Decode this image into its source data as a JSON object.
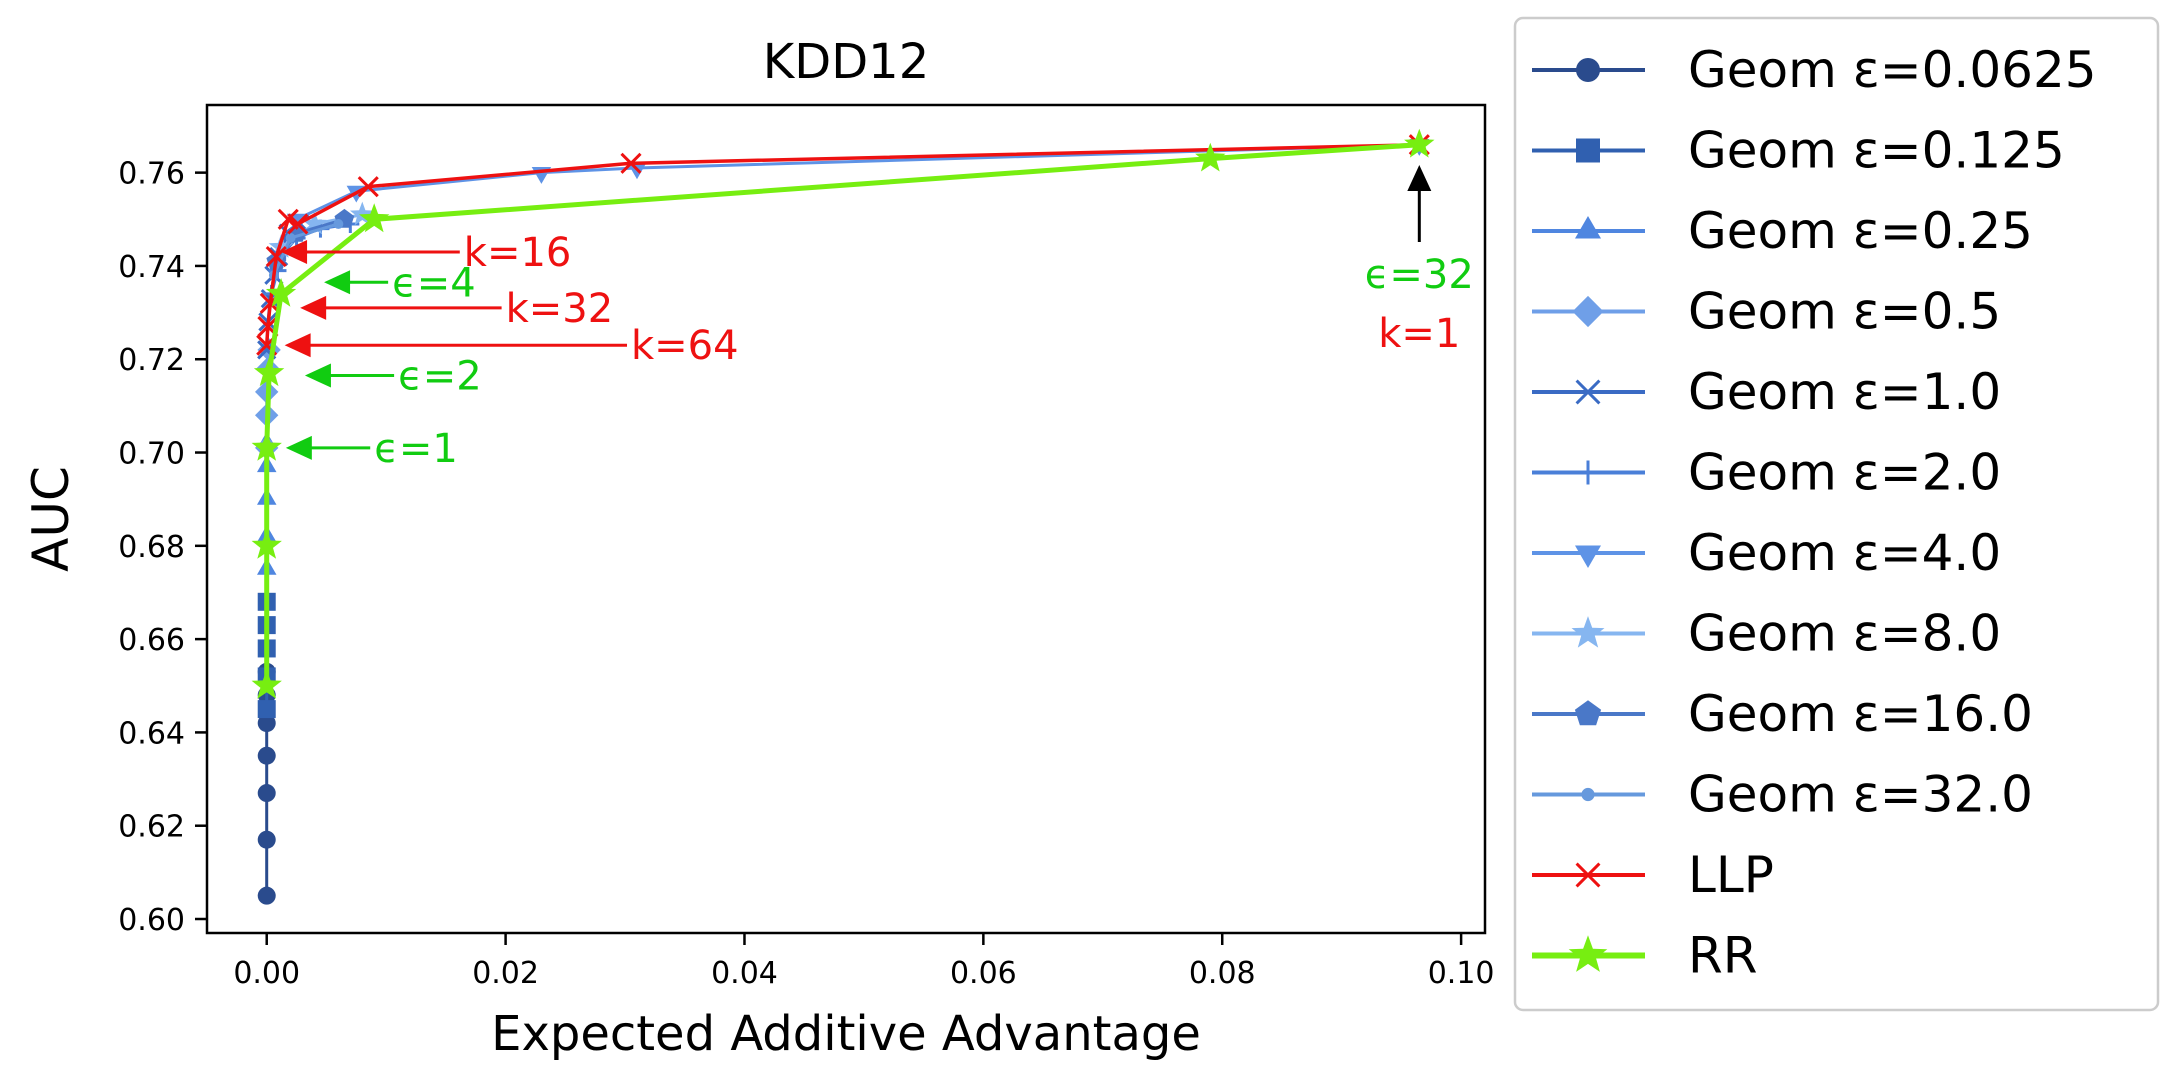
{
  "chart_data": {
    "type": "line",
    "title": "KDD12",
    "xlabel": "Expected Additive Advantage",
    "ylabel": "AUC",
    "xlim": [
      -0.005,
      0.102
    ],
    "ylim": [
      0.597,
      0.7745
    ],
    "xticks": [
      0.0,
      0.02,
      0.04,
      0.06,
      0.08,
      0.1
    ],
    "xtick_labels": [
      "0.00",
      "0.02",
      "0.04",
      "0.06",
      "0.08",
      "0.10"
    ],
    "yticks": [
      0.6,
      0.62,
      0.64,
      0.66,
      0.68,
      0.7,
      0.72,
      0.74,
      0.76
    ],
    "ytick_labels": [
      "0.60",
      "0.62",
      "0.64",
      "0.66",
      "0.68",
      "0.70",
      "0.72",
      "0.74",
      "0.76"
    ],
    "legend_position": "outside-right",
    "grid": false,
    "series": [
      {
        "name": "Geom ε=0.0625",
        "color": "#2a4b8d",
        "marker": "circle",
        "points": [
          [
            0.0,
            0.605
          ],
          [
            0.0,
            0.617
          ],
          [
            0.0,
            0.627
          ],
          [
            0.0,
            0.635
          ],
          [
            0.0,
            0.642
          ],
          [
            0.0,
            0.648
          ],
          [
            0.0,
            0.653
          ]
        ]
      },
      {
        "name": "Geom ε=0.125",
        "color": "#3060b0",
        "marker": "square",
        "points": [
          [
            0.0,
            0.645
          ],
          [
            0.0,
            0.652
          ],
          [
            0.0,
            0.658
          ],
          [
            0.0,
            0.663
          ],
          [
            0.0,
            0.668
          ]
        ]
      },
      {
        "name": "Geom ε=0.25",
        "color": "#4f86e0",
        "marker": "triangle-up",
        "points": [
          [
            0.0,
            0.675
          ],
          [
            0.0,
            0.682
          ],
          [
            0.0,
            0.69
          ],
          [
            0.0,
            0.697
          ],
          [
            0.0,
            0.702
          ]
        ]
      },
      {
        "name": "Geom ε=0.5",
        "color": "#6f9fe8",
        "marker": "diamond",
        "points": [
          [
            0.0,
            0.701
          ],
          [
            0.0,
            0.708
          ],
          [
            0.0,
            0.713
          ],
          [
            0.0001,
            0.718
          ],
          [
            0.0002,
            0.722
          ]
        ]
      },
      {
        "name": "Geom ε=1.0",
        "color": "#3a6bc4",
        "marker": "x",
        "points": [
          [
            0.0,
            0.722
          ],
          [
            0.0001,
            0.728
          ],
          [
            0.0003,
            0.733
          ],
          [
            0.0006,
            0.738
          ],
          [
            0.001,
            0.742
          ],
          [
            0.0018,
            0.747
          ],
          [
            0.0028,
            0.749
          ]
        ]
      },
      {
        "name": "Geom ε=2.0",
        "color": "#4a7fd8",
        "marker": "plus",
        "points": [
          [
            0.0004,
            0.734
          ],
          [
            0.0009,
            0.739
          ],
          [
            0.0015,
            0.743
          ],
          [
            0.0025,
            0.746
          ],
          [
            0.0045,
            0.748
          ],
          [
            0.007,
            0.749
          ]
        ]
      },
      {
        "name": "Geom ε=4.0",
        "color": "#5e93e6",
        "marker": "triangle-down",
        "points": [
          [
            0.0025,
            0.75
          ],
          [
            0.0075,
            0.756
          ],
          [
            0.023,
            0.76
          ],
          [
            0.031,
            0.761
          ],
          [
            0.0965,
            0.766
          ]
        ]
      },
      {
        "name": "Geom ε=8.0",
        "color": "#86b6f0",
        "marker": "star",
        "points": [
          [
            0.0012,
            0.744
          ],
          [
            0.004,
            0.749
          ],
          [
            0.008,
            0.751
          ]
        ]
      },
      {
        "name": "Geom ε=16.0",
        "color": "#4a78c8",
        "marker": "pentagon",
        "points": [
          [
            0.0008,
            0.741
          ],
          [
            0.0025,
            0.747
          ],
          [
            0.0065,
            0.75
          ]
        ]
      },
      {
        "name": "Geom ε=32.0",
        "color": "#6699dd",
        "marker": "point",
        "points": [
          [
            0.0006,
            0.738
          ],
          [
            0.002,
            0.746
          ],
          [
            0.006,
            0.749
          ]
        ]
      },
      {
        "name": "LLP",
        "color": "#ee1111",
        "marker": "x",
        "points": [
          [
            0.0,
            0.723
          ],
          [
            0.0001,
            0.727
          ],
          [
            0.0003,
            0.732
          ],
          [
            0.0008,
            0.742
          ],
          [
            0.0018,
            0.75
          ],
          [
            0.0026,
            0.749
          ],
          [
            0.0085,
            0.757
          ],
          [
            0.0305,
            0.762
          ],
          [
            0.0965,
            0.766
          ]
        ]
      },
      {
        "name": "RR",
        "color": "#77ee11",
        "marker": "star",
        "points": [
          [
            0.0,
            0.65
          ],
          [
            0.0,
            0.68
          ],
          [
            0.0,
            0.701
          ],
          [
            0.0002,
            0.717
          ],
          [
            0.0012,
            0.734
          ],
          [
            0.009,
            0.75
          ],
          [
            0.079,
            0.763
          ],
          [
            0.0965,
            0.766
          ]
        ]
      }
    ],
    "annotations": [
      {
        "text": "k=16",
        "color": "#ee1111",
        "arrow_to": [
          0.0012,
          0.743
        ],
        "text_at": [
          0.0165,
          0.743
        ]
      },
      {
        "text": "ϵ=4",
        "color": "#11cc11",
        "arrow_to": [
          0.0048,
          0.7365
        ],
        "text_at": [
          0.0105,
          0.7365
        ]
      },
      {
        "text": "k=32",
        "color": "#ee1111",
        "arrow_to": [
          0.0028,
          0.731
        ],
        "text_at": [
          0.02,
          0.731
        ]
      },
      {
        "text": "k=64",
        "color": "#ee1111",
        "arrow_to": [
          0.0015,
          0.723
        ],
        "text_at": [
          0.0305,
          0.723
        ]
      },
      {
        "text": "ϵ=2",
        "color": "#11cc11",
        "arrow_to": [
          0.0032,
          0.7165
        ],
        "text_at": [
          0.011,
          0.7165
        ]
      },
      {
        "text": "ϵ=1",
        "color": "#11cc11",
        "arrow_to": [
          0.0016,
          0.701
        ],
        "text_at": [
          0.009,
          0.701
        ]
      }
    ],
    "top_annotation": {
      "line1": "ϵ=32",
      "line2": "k=1",
      "color1": "#11cc11",
      "color2": "#ee1111",
      "arrow_to": [
        0.0965,
        0.7655
      ]
    }
  }
}
